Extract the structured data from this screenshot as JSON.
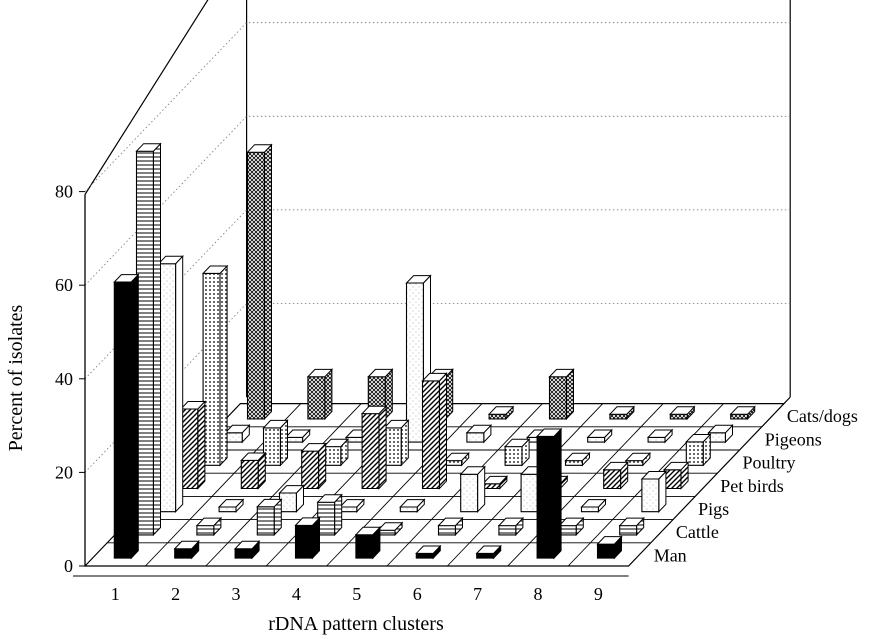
{
  "chart_data": {
    "type": "bar",
    "title": "",
    "xlabel": "rDNA pattern clusters",
    "ylabel": "Percent of isolates",
    "categories": [
      "1",
      "2",
      "3",
      "4",
      "5",
      "6",
      "7",
      "8",
      "9"
    ],
    "yticks": [
      "0",
      "20",
      "40",
      "60",
      "80"
    ],
    "ylim": [
      0,
      100
    ],
    "grid": true,
    "series": [
      {
        "name": "Man",
        "pattern": "solid-black",
        "values": [
          59,
          2,
          2,
          7,
          5,
          1,
          1,
          26,
          3
        ]
      },
      {
        "name": "Cattle",
        "pattern": "horizontal-stripes",
        "values": [
          82,
          2,
          6,
          7,
          1,
          2,
          2,
          2,
          2
        ]
      },
      {
        "name": "Pigs",
        "pattern": "plain-white",
        "values": [
          53,
          1,
          4,
          1,
          1,
          8,
          8,
          1,
          7
        ]
      },
      {
        "name": "Pet birds",
        "pattern": "diagonal-hatch",
        "values": [
          17,
          6,
          8,
          16,
          23,
          1,
          1,
          4,
          4
        ]
      },
      {
        "name": "Poultry",
        "pattern": "dotted",
        "values": [
          41,
          8,
          4,
          8,
          1,
          4,
          1,
          1,
          5
        ]
      },
      {
        "name": "Pigeons",
        "pattern": "plain-white",
        "values": [
          2,
          1,
          1,
          34,
          2,
          1,
          1,
          1,
          2
        ]
      },
      {
        "name": "Cats/dogs",
        "pattern": "crosshatch",
        "values": [
          57,
          9,
          9,
          9,
          1,
          9,
          1,
          1,
          1
        ]
      }
    ]
  }
}
